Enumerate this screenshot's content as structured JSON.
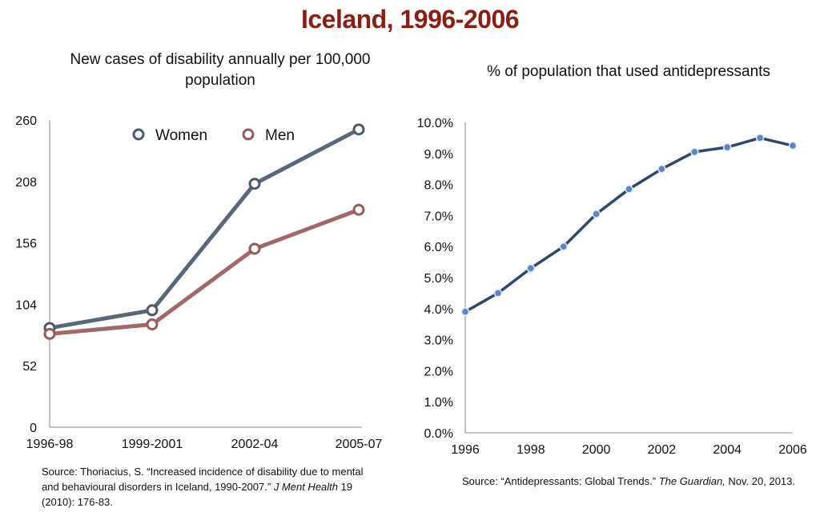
{
  "title": "Iceland, 1996-2006",
  "chart_data": [
    {
      "type": "line",
      "title": "New cases of disability annually per 100,000 population",
      "categories": [
        "1996-98",
        "1999-2001",
        "2002-04",
        "2005-07"
      ],
      "yticks": [
        "0",
        "52",
        "104",
        "156",
        "208",
        "260"
      ],
      "ylim": [
        0,
        260
      ],
      "legend": "top",
      "series": [
        {
          "name": "Women",
          "color": "#4a5b6e",
          "values": [
            84,
            99,
            206,
            252
          ]
        },
        {
          "name": "Men",
          "color": "#9b5a5a",
          "values": [
            79,
            87,
            151,
            184
          ]
        }
      ],
      "source": {
        "prefix": "Source: Thoriacius, S. “Increased incidence of disability due to mental and behavioural disorders in Iceland, 1990-2007.” ",
        "journal": "J Ment Health",
        "suffix": " 19 (2010): 176-83."
      }
    },
    {
      "type": "line",
      "title": "% of population that used antidepressants",
      "x": [
        1996,
        1997,
        1998,
        1999,
        2000,
        2001,
        2002,
        2003,
        2004,
        2005,
        2006
      ],
      "xticks": [
        "1996",
        "1998",
        "2000",
        "2002",
        "2004",
        "2006"
      ],
      "yticks": [
        "0.0%",
        "1.0%",
        "2.0%",
        "3.0%",
        "4.0%",
        "5.0%",
        "6.0%",
        "7.0%",
        "8.0%",
        "9.0%",
        "10.0%"
      ],
      "ylim": [
        0,
        10
      ],
      "series": [
        {
          "color": "#2c4770",
          "values": [
            3.9,
            4.5,
            5.3,
            6.0,
            7.05,
            7.85,
            8.5,
            9.05,
            9.2,
            9.5,
            9.25
          ]
        }
      ],
      "source": {
        "prefix": "Source:  “Antidepressants: Global Trends.” ",
        "journal": "The Guardian,",
        "suffix": "  Nov. 20, 2013."
      }
    }
  ]
}
